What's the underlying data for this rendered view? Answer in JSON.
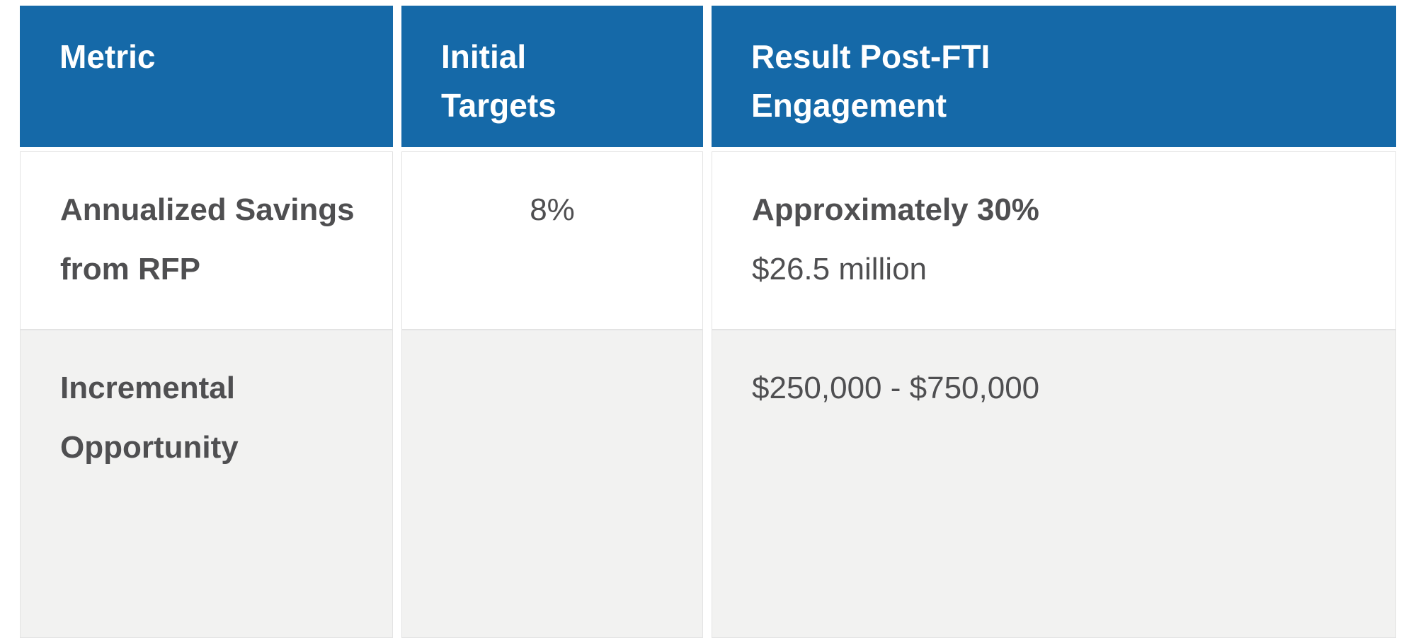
{
  "table": {
    "header": {
      "metric": "Metric",
      "initial_targets": "Initial Targets",
      "result": "Result Post-FTI Engagement"
    },
    "rows": [
      {
        "metric": "Annualized Savings from RFP",
        "initial_target": "8%",
        "result_primary": "Approximately 30%",
        "result_secondary": "$26.5 million"
      },
      {
        "metric": "Incremental Opportunity",
        "initial_target": "",
        "result_primary": "",
        "result_secondary": "$250,000 - $750,000"
      }
    ],
    "colors": {
      "header_bg": "#1569A8",
      "header_text": "#FFFFFF",
      "body_text": "#4F4F51",
      "alt_row_bg": "#F2F2F1",
      "border": "#E3E3E3"
    }
  }
}
